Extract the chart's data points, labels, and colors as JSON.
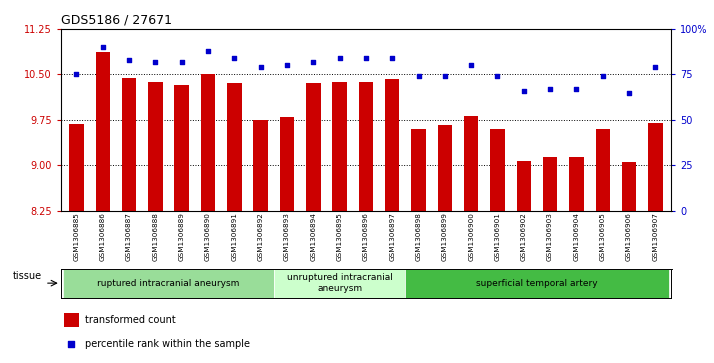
{
  "title": "GDS5186 / 27671",
  "samples": [
    "GSM1306885",
    "GSM1306886",
    "GSM1306887",
    "GSM1306888",
    "GSM1306889",
    "GSM1306890",
    "GSM1306891",
    "GSM1306892",
    "GSM1306893",
    "GSM1306894",
    "GSM1306895",
    "GSM1306896",
    "GSM1306897",
    "GSM1306898",
    "GSM1306899",
    "GSM1306900",
    "GSM1306901",
    "GSM1306902",
    "GSM1306903",
    "GSM1306904",
    "GSM1306905",
    "GSM1306906",
    "GSM1306907"
  ],
  "transformed_count": [
    9.68,
    10.87,
    10.44,
    10.37,
    10.32,
    10.5,
    10.35,
    9.75,
    9.8,
    10.35,
    10.37,
    10.37,
    10.42,
    9.6,
    9.67,
    9.82,
    9.6,
    9.07,
    9.13,
    9.13,
    9.6,
    9.05,
    9.7
  ],
  "percentile_rank": [
    75,
    90,
    83,
    82,
    82,
    88,
    84,
    79,
    80,
    82,
    84,
    84,
    84,
    74,
    74,
    80,
    74,
    66,
    67,
    67,
    74,
    65,
    79
  ],
  "ylim_left": [
    8.25,
    11.25
  ],
  "ylim_right": [
    0,
    100
  ],
  "yticks_left": [
    8.25,
    9.0,
    9.75,
    10.5,
    11.25
  ],
  "yticks_right": [
    0,
    25,
    50,
    75,
    100
  ],
  "bar_color": "#cc0000",
  "dot_color": "#0000cc",
  "grid_color": "#000000",
  "xtick_bg_color": "#cccccc",
  "plot_bg_color": "#ffffff",
  "groups": [
    {
      "label": "ruptured intracranial aneurysm",
      "start": 0,
      "end": 8,
      "color": "#99dd99"
    },
    {
      "label": "unruptured intracranial\naneurysm",
      "start": 8,
      "end": 13,
      "color": "#ccffcc"
    },
    {
      "label": "superficial temporal artery",
      "start": 13,
      "end": 23,
      "color": "#44bb44"
    }
  ],
  "tissue_label": "tissue",
  "legend_bar_label": "transformed count",
  "legend_dot_label": "percentile rank within the sample"
}
